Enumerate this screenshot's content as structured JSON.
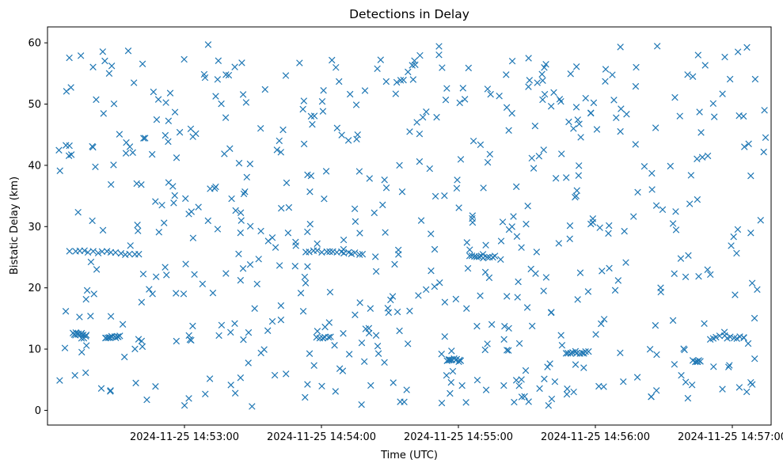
{
  "chart_data": {
    "type": "scatter",
    "title": "Detections in Delay",
    "xlabel": "Time (UTC)",
    "ylabel": "Bistatic Delay (km)",
    "marker": "x",
    "color": "#1f77b4",
    "grid": false,
    "legend": "none",
    "xlim": [
      "2024-11-25 14:52:00",
      "2024-11-25 14:57:17"
    ],
    "ylim": [
      -2.4,
      62.6
    ],
    "xticks": [
      "2024-11-25 14:53:00",
      "2024-11-25 14:54:00",
      "2024-11-25 14:55:00",
      "2024-11-25 14:56:00",
      "2024-11-25 14:57:00"
    ],
    "yticks": [
      0,
      10,
      20,
      30,
      40,
      50,
      60
    ],
    "series": [
      {
        "clusters": [
          {
            "x": [
              "2024-11-25 14:52:10",
              "2024-11-25 14:52:20",
              "2024-11-25 14:52:30",
              "2024-11-25 14:52:40"
            ],
            "y": [
              26.0,
              25.9,
              25.7,
              25.5
            ]
          },
          {
            "x": [
              "2024-11-25 14:52:11",
              "2024-11-25 14:52:14",
              "2024-11-25 14:52:17"
            ],
            "y": [
              12.5,
              12.5,
              12.3
            ]
          },
          {
            "x": [
              "2024-11-25 14:52:25",
              "2024-11-25 14:52:28",
              "2024-11-25 14:52:31"
            ],
            "y": [
              12.0,
              11.9,
              12.0
            ]
          },
          {
            "x": [
              "2024-11-25 14:53:53",
              "2024-11-25 14:54:02",
              "2024-11-25 14:54:10",
              "2024-11-25 14:54:18"
            ],
            "y": [
              26.0,
              25.9,
              25.6,
              25.5
            ]
          },
          {
            "x": [
              "2024-11-25 14:53:58",
              "2024-11-25 14:54:04"
            ],
            "y": [
              11.8,
              12.0
            ]
          },
          {
            "x": [
              "2024-11-25 14:55:05",
              "2024-11-25 14:55:10",
              "2024-11-25 14:55:16"
            ],
            "y": [
              25.3,
              25.0,
              25.2
            ]
          },
          {
            "x": [
              "2024-11-25 14:54:55",
              "2024-11-25 14:54:58",
              "2024-11-25 14:55:01"
            ],
            "y": [
              8.0,
              8.3,
              8.1
            ]
          },
          {
            "x": [
              "2024-11-25 14:55:47",
              "2024-11-25 14:55:52",
              "2024-11-25 14:55:57"
            ],
            "y": [
              9.5,
              9.4,
              9.6
            ]
          },
          {
            "x": [
              "2024-11-25 14:56:50",
              "2024-11-25 14:56:58",
              "2024-11-25 14:57:05"
            ],
            "y": [
              11.8,
              12.0,
              11.9
            ]
          },
          {
            "x": [
              "2024-11-25 14:56:43",
              "2024-11-25 14:56:46"
            ],
            "y": [
              8.2,
              8.0
            ]
          }
        ],
        "scatter_range": {
          "x_min": "2024-11-25 14:52:05",
          "x_max": "2024-11-25 14:57:15",
          "y_min": 0.5,
          "y_max": 59.8
        },
        "approx_count": 600
      }
    ]
  }
}
